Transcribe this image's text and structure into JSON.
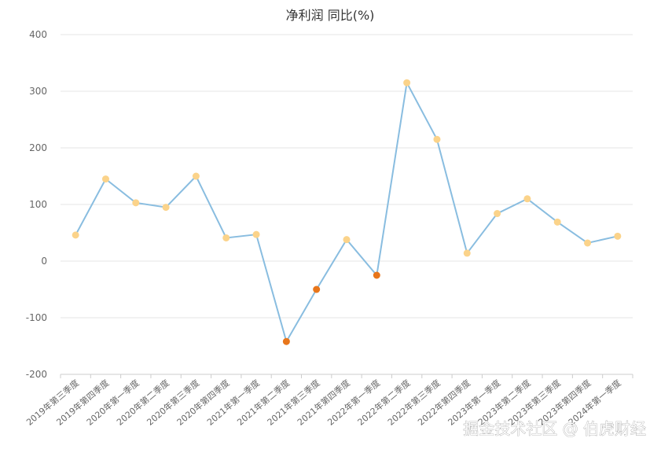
{
  "chart_data": {
    "type": "line",
    "title": "净利润 同比(%)",
    "xlabel": "",
    "ylabel": "",
    "ylim": [
      -200,
      400
    ],
    "yticks": [
      -200,
      -100,
      0,
      100,
      200,
      300,
      400
    ],
    "grid": true,
    "categories": [
      "2019年第三季度",
      "2019年第四季度",
      "2020年第一季度",
      "2020年第二季度",
      "2020年第三季度",
      "2020年第四季度",
      "2021年第一季度",
      "2021年第二季度",
      "2021年第三季度",
      "2021年第四季度",
      "2022年第一季度",
      "2022年第二季度",
      "2022年第三季度",
      "2022年第四季度",
      "2023年第一季度",
      "2023年第二季度",
      "2023年第三季度",
      "2023年第四季度",
      "2024年第一季度"
    ],
    "series": [
      {
        "values": [
          46,
          145,
          103,
          95,
          150,
          41,
          47,
          -142,
          -50,
          38,
          -25,
          315,
          215,
          14,
          84,
          110,
          69,
          32,
          44
        ]
      }
    ],
    "colors": {
      "line": "#89bde0",
      "positive_marker": "#fbd38a",
      "negative_marker": "#e8761b",
      "grid": "#e6e6e6",
      "axis": "#cccccc"
    }
  },
  "watermark": "掘金技术社区 @ 伯虎财经"
}
